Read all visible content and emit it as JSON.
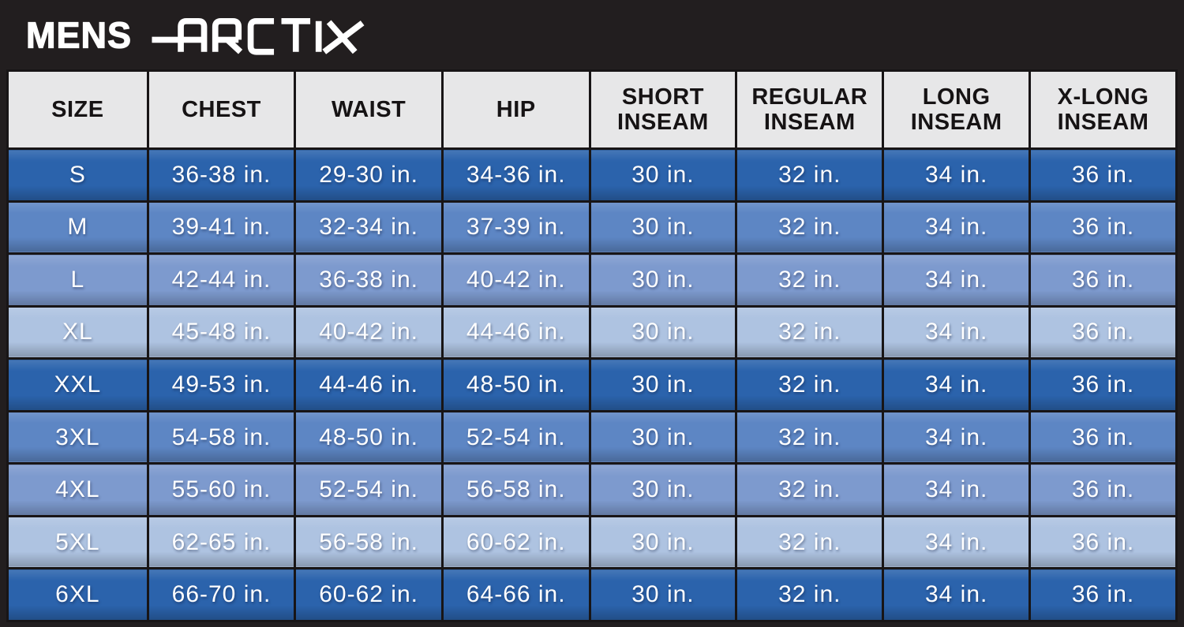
{
  "brand": {
    "gender_label": "MENS",
    "brand_name": "ARCTIX"
  },
  "colors": {
    "frame_black": "#221e1f",
    "header_bg": "#e7e7e8",
    "row_dark": "#2b63ac",
    "row_medium": "#5d86c4",
    "row_medium_light": "#7d9ace",
    "row_light": "#aec3e1",
    "text_on_blue": "#ffffff",
    "text_on_gray": "#161314"
  },
  "chart_data": {
    "type": "table",
    "title": "MENS ARCTIX",
    "columns": [
      "SIZE",
      "CHEST",
      "WAIST",
      "HIP",
      "SHORT INSEAM",
      "REGULAR INSEAM",
      "LONG INSEAM",
      "X-LONG INSEAM"
    ],
    "rows": [
      [
        "S",
        "36-38 in.",
        "29-30 in.",
        "34-36 in.",
        "30 in.",
        "32 in.",
        "34 in.",
        "36 in."
      ],
      [
        "M",
        "39-41 in.",
        "32-34 in.",
        "37-39 in.",
        "30 in.",
        "32 in.",
        "34 in.",
        "36 in."
      ],
      [
        "L",
        "42-44 in.",
        "36-38 in.",
        "40-42 in.",
        "30 in.",
        "32 in.",
        "34 in.",
        "36 in."
      ],
      [
        "XL",
        "45-48 in.",
        "40-42 in.",
        "44-46 in.",
        "30 in.",
        "32 in.",
        "34 in.",
        "36 in."
      ],
      [
        "XXL",
        "49-53 in.",
        "44-46 in.",
        "48-50 in.",
        "30 in.",
        "32 in.",
        "34 in.",
        "36 in."
      ],
      [
        "3XL",
        "54-58 in.",
        "48-50 in.",
        "52-54 in.",
        "30 in.",
        "32 in.",
        "34 in.",
        "36 in."
      ],
      [
        "4XL",
        "55-60 in.",
        "52-54 in.",
        "56-58 in.",
        "30 in.",
        "32 in.",
        "34 in.",
        "36 in."
      ],
      [
        "5XL",
        "62-65 in.",
        "56-58 in.",
        "60-62 in.",
        "30 in.",
        "32 in.",
        "34 in.",
        "36 in."
      ],
      [
        "6XL",
        "66-70 in.",
        "60-62 in.",
        "64-66 in.",
        "30 in.",
        "32 in.",
        "34 in.",
        "36 in."
      ]
    ],
    "row_tone_cycle": [
      "dark",
      "medium",
      "medium-light",
      "light"
    ],
    "units": "in."
  }
}
